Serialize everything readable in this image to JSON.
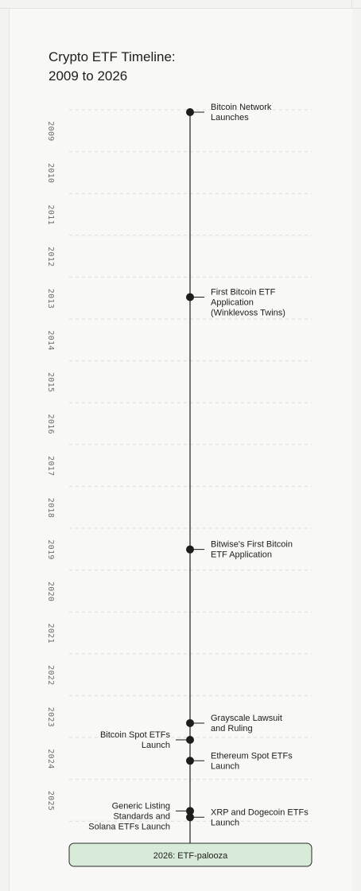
{
  "chart_data": {
    "type": "timeline",
    "title": [
      "Crypto ETF Timeline:",
      "2009 to 2026"
    ],
    "years": [
      "2009",
      "2010",
      "2011",
      "2012",
      "2013",
      "2014",
      "2015",
      "2016",
      "2017",
      "2018",
      "2019",
      "2020",
      "2021",
      "2022",
      "2023",
      "2024",
      "2025"
    ],
    "events": [
      {
        "date": 2009.0,
        "side": "right",
        "label": [
          "Bitcoin Network",
          "Launches"
        ]
      },
      {
        "date": 2013.42,
        "side": "right",
        "label": [
          "First Bitcoin ETF",
          "Application",
          "(Winklevoss Twins)"
        ]
      },
      {
        "date": 2019.45,
        "side": "right",
        "label": [
          "Bitwise's First Bitcoin",
          "ETF Application"
        ]
      },
      {
        "date": 2023.6,
        "side": "right",
        "label": [
          "Grayscale Lawsuit",
          "and Ruling"
        ]
      },
      {
        "date": 2024.0,
        "side": "left",
        "label": [
          "Bitcoin Spot ETFs",
          "Launch"
        ]
      },
      {
        "date": 2024.5,
        "side": "right",
        "label": [
          "Ethereum Spot ETFs",
          "Launch"
        ]
      },
      {
        "date": 2025.7,
        "side": "left",
        "label": [
          "Generic Listing",
          "Standards and",
          "Solana ETFs Launch"
        ]
      },
      {
        "date": 2025.85,
        "side": "right",
        "label": [
          "XRP and Dogecoin ETFs",
          "Launch"
        ]
      }
    ],
    "footer": "2026: ETF-palooza",
    "colors": {
      "line": "#1d1d1b",
      "grid": "#dcdcd8",
      "footer_fill": "#d8ead8",
      "footer_stroke": "#2a2a28"
    }
  }
}
